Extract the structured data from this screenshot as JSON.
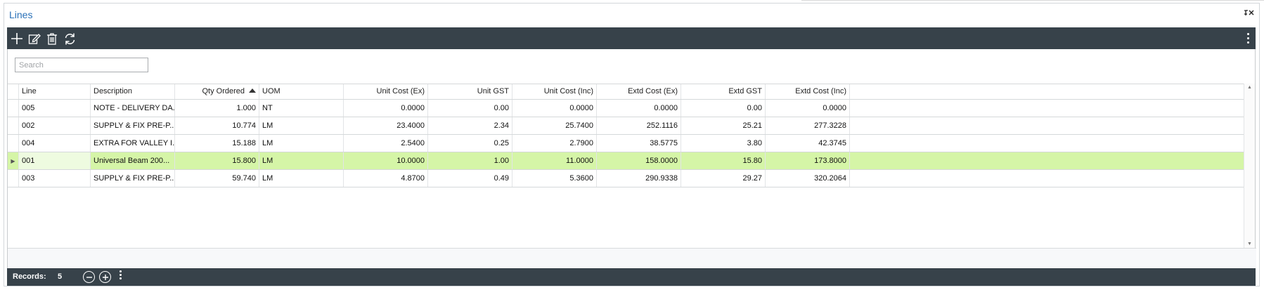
{
  "panel": {
    "title": "Lines",
    "pin_glyph": "⭍✕"
  },
  "toolbar": {
    "icons": [
      "add-icon",
      "edit-icon",
      "delete-icon",
      "refresh-icon",
      "more-vertical-icon"
    ]
  },
  "search": {
    "placeholder": "Search",
    "value": ""
  },
  "grid": {
    "columns": [
      {
        "key": "line",
        "label": "Line",
        "align": "left"
      },
      {
        "key": "description",
        "label": "Description",
        "align": "left"
      },
      {
        "key": "qty",
        "label": "Qty Ordered",
        "align": "right",
        "sorted": "asc"
      },
      {
        "key": "uom",
        "label": "UOM",
        "align": "left"
      },
      {
        "key": "unit_ex",
        "label": "Unit Cost (Ex)",
        "align": "right"
      },
      {
        "key": "unit_gst",
        "label": "Unit GST",
        "align": "right"
      },
      {
        "key": "unit_inc",
        "label": "Unit Cost (Inc)",
        "align": "right"
      },
      {
        "key": "extd_ex",
        "label": "Extd Cost (Ex)",
        "align": "right"
      },
      {
        "key": "extd_gst",
        "label": "Extd GST",
        "align": "right"
      },
      {
        "key": "extd_inc",
        "label": "Extd Cost (Inc)",
        "align": "right"
      }
    ],
    "rows": [
      {
        "line": "005",
        "description": "NOTE - DELIVERY DA...",
        "qty": "1.000",
        "uom": "NT",
        "unit_ex": "0.0000",
        "unit_gst": "0.00",
        "unit_inc": "0.0000",
        "extd_ex": "0.0000",
        "extd_gst": "0.00",
        "extd_inc": "0.0000",
        "selected": false
      },
      {
        "line": "002",
        "description": "SUPPLY & FIX PRE-P...",
        "qty": "10.774",
        "uom": "LM",
        "unit_ex": "23.4000",
        "unit_gst": "2.34",
        "unit_inc": "25.7400",
        "extd_ex": "252.1116",
        "extd_gst": "25.21",
        "extd_inc": "277.3228",
        "selected": false
      },
      {
        "line": "004",
        "description": "EXTRA FOR VALLEY I...",
        "qty": "15.188",
        "uom": "LM",
        "unit_ex": "2.5400",
        "unit_gst": "0.25",
        "unit_inc": "2.7900",
        "extd_ex": "38.5775",
        "extd_gst": "3.80",
        "extd_inc": "42.3745",
        "selected": false
      },
      {
        "line": "001",
        "description": "Universal Beam 200...",
        "qty": "15.800",
        "uom": "LM",
        "unit_ex": "10.0000",
        "unit_gst": "1.00",
        "unit_inc": "11.0000",
        "extd_ex": "158.0000",
        "extd_gst": "15.80",
        "extd_inc": "173.8000",
        "selected": true
      },
      {
        "line": "003",
        "description": "SUPPLY & FIX PRE-P...",
        "qty": "59.740",
        "uom": "LM",
        "unit_ex": "4.8700",
        "unit_gst": "0.49",
        "unit_inc": "5.3600",
        "extd_ex": "290.9338",
        "extd_gst": "29.27",
        "extd_inc": "320.2064",
        "selected": false
      }
    ]
  },
  "status": {
    "records_label": "Records:",
    "records_count": "5"
  },
  "colors": {
    "bar": "#37424a",
    "title": "#2a71b8",
    "selected_row": "#d5f5a7"
  }
}
